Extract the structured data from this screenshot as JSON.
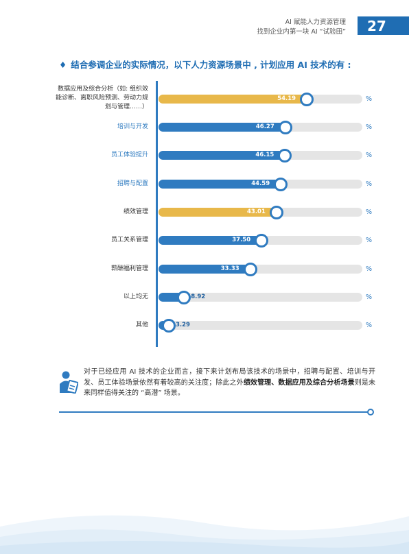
{
  "header": {
    "line1": "AI 赋能人力资源管理",
    "line2": "找到企业内第一块 AI “试验田”",
    "page_number": "27"
  },
  "section": {
    "bullet": "♦",
    "title": "结合参调企业的实际情况，以下人力资源场景中 , 计划应用 AI 技术的有 :"
  },
  "colors": {
    "blue": "#2f7bc0",
    "gold": "#e8b84a",
    "track": "#e5e5e5"
  },
  "chart_data": {
    "type": "bar",
    "orientation": "horizontal",
    "categories": [
      "数据应用及综合分析（如: 组织效能诊断、离职风险预测、劳动力规划与管理……）",
      "培训与开发",
      "员工体验提升",
      "招聘与配置",
      "绩效管理",
      "员工关系管理",
      "薪酬福利管理",
      "以上均无",
      "其他"
    ],
    "values": [
      54.19,
      46.27,
      46.15,
      44.59,
      43.01,
      37.5,
      33.33,
      8.92,
      3.29
    ],
    "value_labels": [
      "54.19",
      "46.27",
      "46.15",
      "44.59",
      "43.01",
      "37.50",
      "33.33",
      "8.92",
      "3.29"
    ],
    "highlight": [
      true,
      false,
      false,
      false,
      true,
      false,
      false,
      false,
      false
    ],
    "label_blue": [
      false,
      true,
      true,
      true,
      false,
      false,
      false,
      false,
      false
    ],
    "unit": "%",
    "xlim": [
      0,
      100
    ]
  },
  "note": {
    "text_before": "对于已经应用 AI 技术的企业而言，接下来计划布局该技术的场景中，招聘与配置、培训与开发、员工体验场景依然有着较高的关注度；除此之外",
    "bold": "绩效管理、数据应用及综合分析场景",
    "text_after": "则是未来同样值得关注的 “高潜” 场景。"
  }
}
